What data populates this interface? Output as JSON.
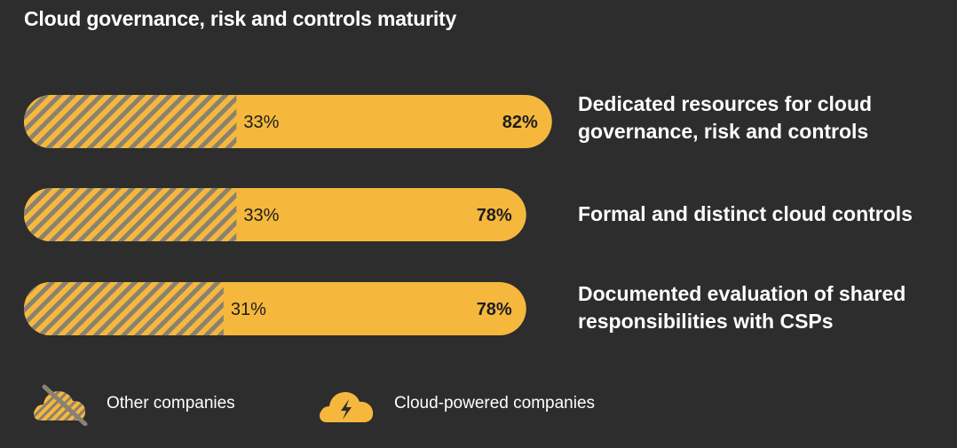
{
  "title": "Cloud governance, risk and controls maturity",
  "colors": {
    "background": "#2d2d2d",
    "cloud_powered": "#f5b83d",
    "hatch_stripe": "#8a8170",
    "text_dark": "#1e1e1e",
    "text_light": "#ffffff"
  },
  "chart_data": {
    "type": "bar",
    "orientation": "horizontal",
    "categories": [
      "Dedicated resources for cloud governance, risk and controls",
      "Formal and distinct cloud controls",
      "Documented evaluation of shared responsibilities with CSPs"
    ],
    "series": [
      {
        "name": "Other companies",
        "values": [
          33,
          33,
          31
        ]
      },
      {
        "name": "Cloud-powered companies",
        "values": [
          82,
          78,
          78
        ]
      }
    ],
    "value_suffix": "%",
    "xlim": [
      0,
      100
    ],
    "legend_position": "bottom-left",
    "grid": false
  },
  "labels": {
    "row1_line1": "Dedicated resources for cloud",
    "row1_line2": "governance, risk and controls",
    "row2_line1": "Formal and distinct cloud controls",
    "row3_line1": "Documented evaluation of shared",
    "row3_line2": "responsibilities with CSPs"
  },
  "legend": {
    "other": {
      "label": "Other companies",
      "icon": "cloud-crossed-icon"
    },
    "cloud": {
      "label": "Cloud-powered companies",
      "icon": "cloud-lightning-icon"
    }
  }
}
